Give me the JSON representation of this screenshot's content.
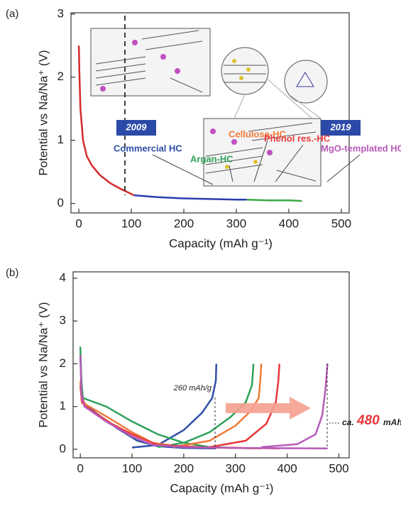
{
  "chart_data": [
    {
      "type": "line",
      "panel": "(a)",
      "xlabel": "Capacity (mAh g⁻¹)",
      "ylabel": "Potential vs Na/Na⁺ (V)",
      "xlim": [
        -15,
        515
      ],
      "ylim": [
        -0.15,
        3.02
      ],
      "xticks": [
        0,
        100,
        200,
        300,
        400,
        500
      ],
      "yticks": [
        0,
        1,
        2,
        3
      ],
      "series": [
        {
          "color": "#d42a2a",
          "x": [
            0,
            1,
            3,
            8,
            15,
            25,
            40,
            60,
            80,
            100,
            105
          ],
          "values": [
            2.5,
            2.1,
            1.5,
            1.0,
            0.75,
            0.6,
            0.45,
            0.32,
            0.23,
            0.15,
            0.13
          ]
        },
        {
          "color": "#2a3fb0",
          "x": [
            105,
            150,
            200,
            250,
            300,
            320
          ],
          "values": [
            0.13,
            0.1,
            0.08,
            0.07,
            0.06,
            0.06
          ]
        },
        {
          "color": "#3aa845",
          "x": [
            320,
            360,
            400,
            425
          ],
          "values": [
            0.06,
            0.05,
            0.05,
            0.04
          ]
        }
      ]
    },
    {
      "type": "line",
      "panel": "(b)",
      "xlabel": "Capacity (mAh g⁻¹)",
      "ylabel": "Potential vs Na/Na⁺ (V)",
      "xlim": [
        -14,
        520
      ],
      "ylim": [
        -0.2,
        4.15
      ],
      "xticks": [
        0,
        100,
        200,
        300,
        400,
        500
      ],
      "yticks": [
        0,
        1,
        2,
        3,
        4
      ],
      "annotations": [
        "2009",
        "2019",
        "260 mAh/g",
        "ca.",
        "480",
        "mAh/g"
      ],
      "series": [
        {
          "name": "Commercial HC",
          "color": "#2f4fa8",
          "x": [
            0,
            2,
            5,
            30,
            70,
            110,
            150,
            200,
            262,
            0,
            100,
            150,
            200,
            235,
            255,
            262,
            263
          ],
          "values": [
            2.2,
            1.5,
            1.1,
            0.85,
            0.5,
            0.2,
            0.07,
            0.03,
            0.02,
            null,
            0.04,
            0.1,
            0.45,
            0.85,
            1.2,
            1.6,
            2.0
          ]
        },
        {
          "name": "Argan-HC",
          "color": "#2ea05a",
          "x": [
            0,
            2,
            5,
            50,
            100,
            150,
            200,
            250,
            335,
            0,
            150,
            200,
            250,
            290,
            320,
            332,
            335
          ],
          "values": [
            2.4,
            1.6,
            1.2,
            1.0,
            0.65,
            0.35,
            0.15,
            0.05,
            0.02,
            null,
            0.05,
            0.15,
            0.4,
            0.75,
            1.1,
            1.5,
            2.0
          ]
        },
        {
          "name": "Cellulose-HC",
          "color": "#f07a3a",
          "x": [
            0,
            3,
            10,
            60,
            100,
            140,
            200,
            350,
            0,
            180,
            250,
            300,
            330,
            345,
            348,
            350
          ],
          "values": [
            1.6,
            1.2,
            1.05,
            0.7,
            0.4,
            0.15,
            0.05,
            0.02,
            null,
            0.05,
            0.2,
            0.55,
            0.9,
            1.2,
            1.6,
            2.0
          ]
        },
        {
          "name": "Phenol res.-HC",
          "color": "#e8383a",
          "x": [
            0,
            3,
            10,
            60,
            100,
            150,
            250,
            385,
            0,
            250,
            320,
            360,
            378,
            383,
            385
          ],
          "values": [
            1.5,
            1.1,
            1.0,
            0.6,
            0.35,
            0.1,
            0.04,
            0.02,
            null,
            0.05,
            0.2,
            0.6,
            1.1,
            1.6,
            2.0
          ]
        },
        {
          "name": "MgO-templated HC*",
          "color": "#b75ab9",
          "x": [
            0,
            2,
            8,
            50,
            100,
            140,
            200,
            300,
            478,
            0,
            350,
            420,
            455,
            468,
            474,
            478
          ],
          "values": [
            2.2,
            1.3,
            1.0,
            0.65,
            0.3,
            0.1,
            0.05,
            0.03,
            0.02,
            null,
            0.05,
            0.12,
            0.35,
            0.8,
            1.4,
            2.0
          ]
        }
      ]
    }
  ]
}
